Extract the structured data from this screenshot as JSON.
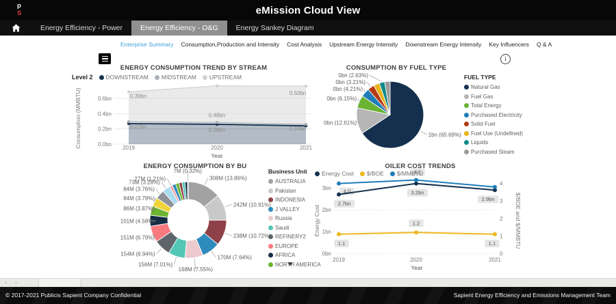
{
  "header": {
    "logo_line1": "p",
    "logo_line2": "S",
    "title": "eMission Cloud View"
  },
  "nav": {
    "home_icon": "home",
    "tabs": [
      {
        "label": "Energy Efficiency - Power",
        "active": false
      },
      {
        "label": "Energy Efficiency - O&G",
        "active": true
      },
      {
        "label": "Energy Sankey Diagram",
        "active": false
      }
    ]
  },
  "subnav": {
    "tabs": [
      {
        "label": "Enterprise Summary",
        "active": true
      },
      {
        "label": "Consumption,Production and Intensity",
        "active": false
      },
      {
        "label": "Cost Analysis",
        "active": false
      },
      {
        "label": "Upstream Energy Intensity",
        "active": false
      },
      {
        "label": "Downstream Energy Intensity",
        "active": false
      },
      {
        "label": "Key Influencers",
        "active": false
      },
      {
        "label": "Q & A",
        "active": false
      }
    ]
  },
  "toolbar": {
    "bookmark_button_icon": "bookmark-list",
    "info_icon": "info"
  },
  "chart_data": [
    {
      "type": "area",
      "stacked": true,
      "title": "ENERGY CONSUMPTION TREND BY STREAM",
      "legend_title": "Level 2",
      "x": [
        "2019",
        "2020",
        "2021"
      ],
      "xlabel": "Year",
      "ylabel": "Consumption (MMBTU)",
      "yticks": [
        "0.0bn",
        "0.2bn",
        "0.4bn",
        "0.6bn"
      ],
      "ytick_values": [
        0,
        0.2,
        0.4,
        0.6
      ],
      "series": [
        {
          "name": "DOWNSTREAM",
          "color": "#14304e",
          "fill": "#14304e",
          "fill_opacity": 0.32,
          "values": [
            0.27,
            0.26,
            0.24
          ],
          "labels": [
            "0.27bn",
            "0.26bn",
            "0.24bn"
          ]
        },
        {
          "name": "MIDSTREAM",
          "color": "#aab1b9",
          "fill": "#b7bec6",
          "fill_opacity": 0.4,
          "values": [
            0.025,
            0.025,
            0.02
          ],
          "labels": [
            "",
            "",
            ""
          ]
        },
        {
          "name": "UPSTREAM",
          "color": "#d2d2d2",
          "fill": "#d9d9d9",
          "fill_opacity": 0.55,
          "values": [
            0.39,
            0.48,
            0.5
          ],
          "labels": [
            "0.39bn",
            "0.48bn",
            "0.50bn"
          ]
        }
      ]
    },
    {
      "type": "pie",
      "title": "CONSUMPTION BY FUEL TYPE",
      "legend_title": "FUEL TYPE",
      "slices": [
        {
          "name": "Natural Gas",
          "color": "#14304e",
          "pct": 65.69,
          "label": "1bn (65.69%)"
        },
        {
          "name": "Fuel Gas",
          "color": "#b5b5b5",
          "pct": 12.61,
          "label": "0bn (12.61%)"
        },
        {
          "name": "Total Energy",
          "color": "#69b232",
          "pct": 6.15,
          "label": "0bn (6.15%)"
        },
        {
          "name": "Purchased Electricity",
          "color": "#1e7db9",
          "pct": 4.21,
          "label": "0bn (4.21%)"
        },
        {
          "name": "Solid Fuel",
          "color": "#b53a14",
          "pct": 3.21,
          "label": "0bn (3.21%)"
        },
        {
          "name": "Fuel Use (Undefined)",
          "color": "#e9b31c",
          "pct": 2.88,
          "label": ""
        },
        {
          "name": "Liquids",
          "color": "#0f8a8a",
          "pct": 2.63,
          "label": "0bn (2.63%)"
        },
        {
          "name": "Purchased Steam",
          "color": "#9a9a9a",
          "pct": 2.62,
          "label": ""
        }
      ]
    },
    {
      "type": "donut",
      "title": "ENERGY CONSUMPTION BY BU",
      "legend_title": "Business Unit",
      "legend_count": 10,
      "legend_has_more": true,
      "slices": [
        {
          "name": "AUSTRALIA",
          "color": "#a2a2a2",
          "pct": 13.86,
          "label": "308M (13.86%)"
        },
        {
          "name": "Pakistan",
          "color": "#c9c9c9",
          "pct": 10.91,
          "label": "242M (10.91%)"
        },
        {
          "name": "INDONESIA",
          "color": "#8e4149",
          "pct": 10.72,
          "label": "238M (10.72%)"
        },
        {
          "name": "J VALLEY",
          "color": "#2f8bbd",
          "pct": 7.64,
          "label": "170M (7.64%)"
        },
        {
          "name": "Russia",
          "color": "#eccacd",
          "pct": 7.55,
          "label": "168M (7.55%)"
        },
        {
          "name": "Saudi",
          "color": "#54c6b5",
          "pct": 7.01,
          "label": "156M (7.01%)"
        },
        {
          "name": "REFINERY2",
          "color": "#5d656b",
          "pct": 6.94,
          "label": "154M (6.94%)"
        },
        {
          "name": "EUROPE",
          "color": "#f87a7f",
          "pct": 6.79,
          "label": "151M (6.79%)"
        },
        {
          "name": "AFRICA",
          "color": "#152c44",
          "pct": 4.58,
          "label": "101M (4.58%)"
        },
        {
          "name": "NORTH AMERICA",
          "color": "#6cb42f",
          "pct": 3.87,
          "label": "86M (3.87%)"
        },
        {
          "name": "",
          "color": "#eed339",
          "pct": 3.79,
          "label": "84M (3.79%)"
        },
        {
          "name": "",
          "color": "#8d9399",
          "pct": 3.76,
          "label": "84M (3.76%)"
        },
        {
          "name": "",
          "color": "#a9dcf2",
          "pct": 3.28,
          "label": "73M (3.28%)"
        },
        {
          "name": "",
          "color": "#f4a3a7",
          "pct": 1.21,
          "label": "27M (1.21%)"
        },
        {
          "name": "",
          "color": "#2f8bbd",
          "pct": 1.5,
          "label": ""
        },
        {
          "name": "",
          "color": "#6cb42f",
          "pct": 1.4,
          "label": ""
        },
        {
          "name": "",
          "color": "#8e4149",
          "pct": 1.3,
          "label": ""
        },
        {
          "name": "",
          "color": "#54c6b5",
          "pct": 1.2,
          "label": ""
        },
        {
          "name": "",
          "color": "#152c44",
          "pct": 1.05,
          "label": ""
        },
        {
          "name": "",
          "color": "#a2a2a2",
          "pct": 0.32,
          "label": "7M (0.32%)"
        }
      ]
    },
    {
      "type": "line",
      "title": "OILER COST TRENDS",
      "x": [
        "2019",
        "2020",
        "2021"
      ],
      "xlabel": "Year",
      "left_axis": {
        "title": "Energy Cost",
        "ticks": [
          "0bn",
          "1bn",
          "2bn",
          "3bn"
        ],
        "tick_values": [
          0,
          1,
          2,
          3
        ]
      },
      "right_axis": {
        "title": "$/BOE and $/MMBTU",
        "ticks": [
          "0",
          "1",
          "2",
          "3",
          "4"
        ],
        "tick_values": [
          0,
          1,
          2,
          3,
          4
        ]
      },
      "series": [
        {
          "name": "Energy Cost",
          "color": "#14304e",
          "axis": "left",
          "values": [
            2.7,
            3.2,
            2.9
          ],
          "labels": [
            "2.7bn",
            "3.2bn",
            "2.9bn"
          ]
        },
        {
          "name": "$/BOE",
          "color": "#edb81e",
          "axis": "right",
          "values": [
            1.1,
            1.2,
            1.1
          ],
          "labels": [
            "1.1",
            "1.2",
            "1.1"
          ]
        },
        {
          "name": "$/MMBTU",
          "color": "#1e7db9",
          "axis": "right",
          "values": [
            4.0,
            4.2,
            3.8
          ],
          "labels": [
            "4.0",
            "4.2",
            ""
          ]
        }
      ]
    }
  ],
  "page_bar": {
    "prev_icon": "chevron-left",
    "next_icon": "chevron-right"
  },
  "footer": {
    "left": "© 2017-2021 Publicis Sapient Company Confidential",
    "right": "Sapient Energy Efficiency and Emissions Management Team"
  },
  "colors": {
    "accent": "#3f9fd8",
    "navy": "#14304e",
    "yellow": "#edb81e",
    "blue": "#1e7db9",
    "nav_selected_bg": "#909090"
  }
}
